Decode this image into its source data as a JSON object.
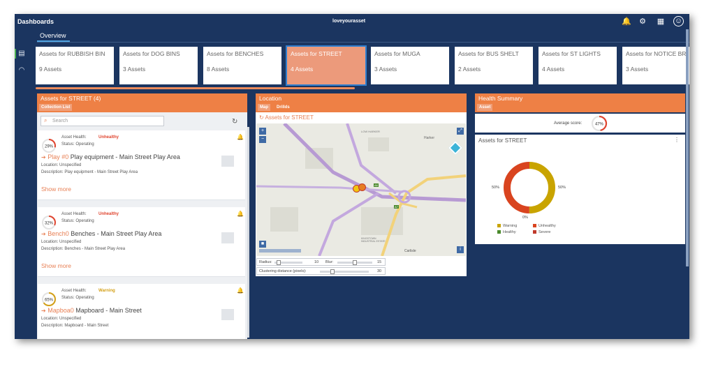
{
  "app": {
    "title": "Dashboards",
    "brand": "loveyourasset"
  },
  "tabs": [
    {
      "label": "Overview"
    }
  ],
  "asset_cards": [
    {
      "title": "Assets for RUBBISH BIN",
      "count": "9 Assets"
    },
    {
      "title": "Assets for DOG BINS",
      "count": "3 Assets"
    },
    {
      "title": "Assets for BENCHES",
      "count": "8 Assets"
    },
    {
      "title": "Assets for STREET",
      "count": "4 Assets"
    },
    {
      "title": "Assets for MUGA",
      "count": "3 Assets"
    },
    {
      "title": "Assets for BUS SHELT",
      "count": "2 Assets"
    },
    {
      "title": "Assets for ST LIGHTS",
      "count": "4 Assets"
    },
    {
      "title": "Assets for NOTICE BR",
      "count": "3 Assets"
    }
  ],
  "collection": {
    "title": "Assets for STREET  (4)",
    "subtab": "Collection List",
    "search_placeholder": "Search",
    "items": [
      {
        "percent": "29%",
        "percent_value": 29,
        "health_label": "Asset Health:",
        "health": "Unhealthy",
        "health_color": "#e0452f",
        "status": "Status: Operating",
        "code": "Play #0",
        "name": "Play equipment - Main Street Play Area",
        "location": "Location: Unspecified",
        "description": "Description: Play equipment - Main Street Play Area",
        "more": "Show more"
      },
      {
        "percent": "32%",
        "percent_value": 32,
        "health_label": "Asset Health:",
        "health": "Unhealthy",
        "health_color": "#e0452f",
        "status": "Status: Operating",
        "code": "Bench0",
        "name": "Benches - Main Street Play Area",
        "location": "Location: Unspecified",
        "description": "Description: Benches - Main Street Play Area",
        "more": "Show more"
      },
      {
        "percent": "65%",
        "percent_value": 65,
        "health_label": "Asset Health:",
        "health": "Warning",
        "health_color": "#d4a017",
        "status": "Status: Operating",
        "code": "Mapboa0",
        "name": "Mapboard - Main Street",
        "location": "Location: Unspecified",
        "description": "Description: Mapboard - Main Street"
      }
    ]
  },
  "location": {
    "title": "Location",
    "subtabs": [
      "Map",
      "Drillds"
    ],
    "map_title": "Assets for STREET",
    "map_labels": [
      "LOW HARKER",
      "Harker",
      "A6",
      "A7",
      "KINGSTOWN INDUSTRIAL ESTATE",
      "Carlisle"
    ],
    "radius_label": "Radius:",
    "radius_value": "10",
    "blur_label": "Blur:",
    "blur_value": "15",
    "cluster_label": "Clustering distance (pixels):",
    "cluster_value": "30"
  },
  "health": {
    "title": "Health Summary",
    "subtab": "Asset",
    "avg_label": "Average score:",
    "avg_score": "47%",
    "avg_value": 47,
    "chart_title": "Assets for STREET"
  },
  "chart_data": {
    "type": "pie",
    "title": "Assets for STREET",
    "labels": [
      "Warning",
      "Unhealthy",
      "Healthy",
      "Severe"
    ],
    "values": [
      50,
      50,
      0,
      0
    ],
    "percent_labels": [
      "50%",
      "50%",
      "0%"
    ],
    "colors": [
      "#c9a400",
      "#d9441f",
      "#4a8a2c",
      "#c0392b"
    ],
    "legend_position": "bottom"
  },
  "colors": {
    "accent": "#ee8045",
    "navy": "#1b3560",
    "highlight_card": "#ec9a7b"
  },
  "icons": {
    "notifications": "bell-icon",
    "settings": "gear-icon",
    "apps": "grid-icon",
    "user": "user-icon"
  }
}
